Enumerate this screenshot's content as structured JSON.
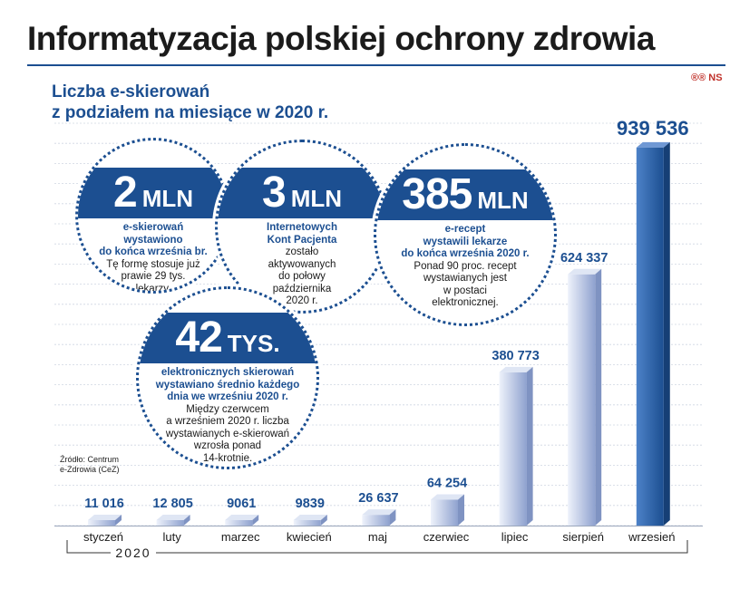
{
  "header": {
    "title": "Informatyzacja polskiej ochrony zdrowia",
    "logo_text": "®® NS"
  },
  "subtitle_lines": [
    "Liczba e-skierowań",
    "z podziałem na miesiące w 2020 r."
  ],
  "source_lines": [
    "Źródło: Centrum",
    "e-Zdrowia (CeZ)"
  ],
  "chart_data": {
    "type": "bar",
    "categories": [
      "styczeń",
      "luty",
      "marzec",
      "kwiecień",
      "maj",
      "czerwiec",
      "lipiec",
      "sierpień",
      "wrzesień"
    ],
    "values": [
      11016,
      12805,
      9061,
      9839,
      26637,
      64254,
      380773,
      624337,
      939536
    ],
    "value_labels": [
      "11 016",
      "12 805",
      "9061",
      "9839",
      "26 637",
      "64 254",
      "380 773",
      "624 337",
      "939 536"
    ],
    "year_label": "2020",
    "ylim": [
      0,
      1000000
    ],
    "grid": true,
    "colors": {
      "bar_light": "#eef2fb",
      "bar_dark": "#8fa2cf",
      "bar_highlight_light": "#4d82c8",
      "bar_highlight_dark": "#1c4f91",
      "label": "#1c4f91"
    }
  },
  "callouts": [
    {
      "value": "2",
      "unit": "MLN",
      "highlight_lines": [
        "e-skierowań",
        "wystawiono",
        "do końca września br."
      ],
      "text_lines": [
        "Tę formę stosuje już",
        "prawie 29 tys.",
        "lekarzy."
      ]
    },
    {
      "value": "3",
      "unit": "MLN",
      "highlight_lines": [
        "Internetowych",
        "Kont Pacjenta"
      ],
      "text_lines": [
        "zostało",
        "aktywowanych",
        "do połowy",
        "października",
        "2020 r."
      ]
    },
    {
      "value": "385",
      "unit": "MLN",
      "highlight_lines": [
        "e-recept",
        "wystawili lekarze",
        "do końca września 2020 r."
      ],
      "text_lines": [
        "Ponad 90 proc. recept",
        "wystawianych jest",
        "w postaci",
        "elektronicznej."
      ]
    },
    {
      "value": "42",
      "unit": "TYS.",
      "highlight_lines": [
        "elektronicznych skierowań",
        "wystawiano średnio każdego",
        "dnia we wrześniu 2020 r."
      ],
      "text_lines": [
        "Między czerwcem",
        "a wrześniem 2020 r. liczba",
        "wystawianych e-skierowań",
        "wzrosła ponad",
        "14-krotnie."
      ]
    }
  ]
}
